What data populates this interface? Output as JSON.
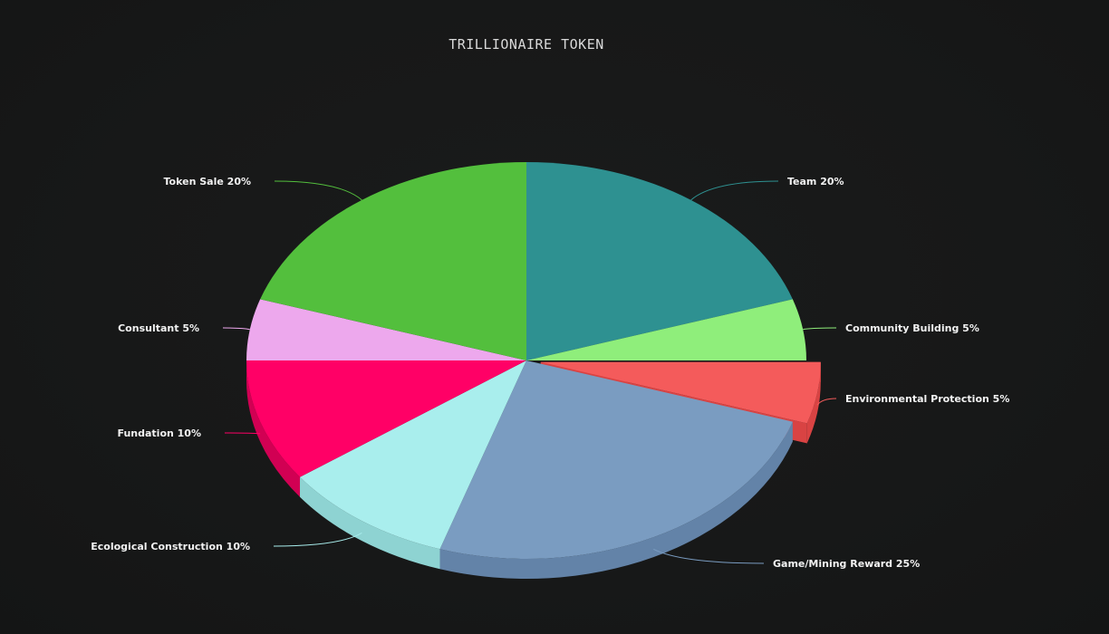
{
  "chart_data": {
    "type": "pie",
    "title": "TRILLIONAIRE TOKEN",
    "slices": [
      {
        "label": "Team 20%",
        "name": "Team",
        "value": 20,
        "color": "#2e9191",
        "side": "#25797a"
      },
      {
        "label": "Community Building 5%",
        "name": "Community Building",
        "value": 5,
        "color": "#8fee7b",
        "side": "#75cf63"
      },
      {
        "label": "Environmental Protection 5%",
        "name": "Environmental Protection",
        "value": 5,
        "color": "#f45b5b",
        "side": "#d94343"
      },
      {
        "label": "Game/Mining Reward 25%",
        "name": "Game/Mining Reward",
        "value": 25,
        "color": "#7a9cc1",
        "side": "#6383a8"
      },
      {
        "label": "Ecological Construction 10%",
        "name": "Ecological Construction",
        "value": 10,
        "color": "#a9eeed",
        "side": "#8ed3d2"
      },
      {
        "label": "Fundation 10%",
        "name": "Fundation",
        "value": 10,
        "color": "#ff0066",
        "side": "#d10053"
      },
      {
        "label": "Consultant 5%",
        "name": "Consultant",
        "value": 5,
        "color": "#eda8ed",
        "side": "#cf8fcf"
      },
      {
        "label": "Token Sale 20%",
        "name": "Token Sale",
        "value": 20,
        "color": "#53bf3d",
        "side": "#43a030"
      }
    ]
  }
}
